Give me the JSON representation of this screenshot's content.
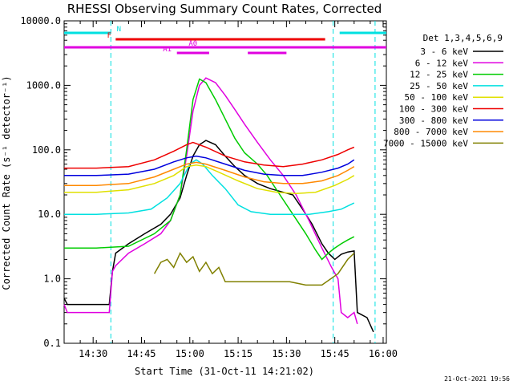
{
  "chart_data": {
    "type": "line",
    "title": "RHESSI Observing Summary Count Rates, Corrected",
    "xlabel": "Start Time (31-Oct-11 14:21:02)",
    "ylabel": "Corrected Count Rate (s⁻¹ detector⁻¹)",
    "x_ticks": [
      "14:30",
      "14:45",
      "15:00",
      "15:15",
      "15:30",
      "15:45",
      "16:00"
    ],
    "y_ticks": [
      "0.1",
      "1.0",
      "10.0",
      "100.0",
      "1000.0",
      "10000.0"
    ],
    "y_scale": "log",
    "ylim": [
      0.1,
      10000
    ],
    "xlim_minutes": [
      0,
      100
    ],
    "detector_label": "Det 1,3,4,5,6,9",
    "footer_date": "21-Oct-2021 19:56",
    "flags": {
      "N": {
        "label": "N",
        "color": "#00e0e0",
        "segments": [
          [
            0,
            14.5
          ],
          [
            85.5,
            100
          ]
        ]
      },
      "F": {
        "label": "F",
        "color": "#ee0000",
        "segments": [
          [
            16,
            81
          ]
        ]
      },
      "A0": {
        "label": "A0",
        "color": "#e000e0",
        "segments": [
          [
            0,
            100
          ]
        ]
      },
      "A1": {
        "label": "A1",
        "color": "#e000e0",
        "segments": [
          [
            35,
            45
          ],
          [
            57,
            69
          ]
        ]
      }
    },
    "vlines_minutes": [
      14.5,
      83.5,
      96.5
    ],
    "series": [
      {
        "name": "3 - 6 keV",
        "color": "#000000",
        "points": [
          [
            0,
            0.5
          ],
          [
            1,
            0.4
          ],
          [
            14,
            0.4
          ],
          [
            15,
            1.3
          ],
          [
            16,
            2.5
          ],
          [
            20,
            3.5
          ],
          [
            25,
            5
          ],
          [
            30,
            7
          ],
          [
            33,
            10
          ],
          [
            36,
            18
          ],
          [
            38,
            40
          ],
          [
            40,
            80
          ],
          [
            42,
            120
          ],
          [
            44,
            140
          ],
          [
            47,
            120
          ],
          [
            50,
            80
          ],
          [
            53,
            55
          ],
          [
            56,
            40
          ],
          [
            60,
            30
          ],
          [
            64,
            25
          ],
          [
            68,
            22
          ],
          [
            71,
            20
          ],
          [
            74,
            12
          ],
          [
            77,
            7
          ],
          [
            80,
            3.5
          ],
          [
            82,
            2.5
          ],
          [
            84,
            2
          ],
          [
            86,
            2.4
          ],
          [
            88,
            2.6
          ],
          [
            90,
            2.7
          ],
          [
            91,
            0.3
          ],
          [
            94,
            0.25
          ],
          [
            96,
            0.15
          ]
        ]
      },
      {
        "name": "6 - 12 keV",
        "color": "#e000e0",
        "points": [
          [
            0,
            0.4
          ],
          [
            1,
            0.3
          ],
          [
            14,
            0.3
          ],
          [
            15,
            1.3
          ],
          [
            16,
            1.6
          ],
          [
            20,
            2.5
          ],
          [
            25,
            3.5
          ],
          [
            30,
            5
          ],
          [
            33,
            8
          ],
          [
            36,
            20
          ],
          [
            38,
            80
          ],
          [
            40,
            400
          ],
          [
            42,
            1000
          ],
          [
            44,
            1300
          ],
          [
            47,
            1100
          ],
          [
            50,
            700
          ],
          [
            53,
            420
          ],
          [
            56,
            250
          ],
          [
            60,
            130
          ],
          [
            64,
            70
          ],
          [
            68,
            40
          ],
          [
            72,
            20
          ],
          [
            76,
            8
          ],
          [
            80,
            3
          ],
          [
            83,
            1.5
          ],
          [
            85,
            1.0
          ],
          [
            86,
            0.3
          ],
          [
            88,
            0.25
          ],
          [
            90,
            0.3
          ],
          [
            91,
            0.2
          ]
        ]
      },
      {
        "name": "12 - 25 keV",
        "color": "#00cc00",
        "points": [
          [
            0,
            3.0
          ],
          [
            10,
            3.0
          ],
          [
            20,
            3.2
          ],
          [
            28,
            5
          ],
          [
            33,
            8
          ],
          [
            36,
            20
          ],
          [
            38,
            100
          ],
          [
            40,
            600
          ],
          [
            42,
            1250
          ],
          [
            44,
            1100
          ],
          [
            47,
            600
          ],
          [
            50,
            300
          ],
          [
            53,
            150
          ],
          [
            56,
            90
          ],
          [
            60,
            60
          ],
          [
            63,
            40
          ],
          [
            67,
            20
          ],
          [
            71,
            10
          ],
          [
            75,
            5
          ],
          [
            78,
            2.8
          ],
          [
            80,
            2.0
          ],
          [
            82,
            2.5
          ],
          [
            84,
            3.0
          ],
          [
            86,
            3.5
          ],
          [
            88,
            4.0
          ],
          [
            90,
            4.5
          ]
        ]
      },
      {
        "name": "25 - 50 keV",
        "color": "#00e0e0",
        "points": [
          [
            0,
            10
          ],
          [
            10,
            10
          ],
          [
            20,
            10.5
          ],
          [
            27,
            12
          ],
          [
            32,
            18
          ],
          [
            36,
            30
          ],
          [
            39,
            60
          ],
          [
            41,
            70
          ],
          [
            43,
            60
          ],
          [
            46,
            40
          ],
          [
            50,
            25
          ],
          [
            54,
            14
          ],
          [
            58,
            11
          ],
          [
            64,
            10
          ],
          [
            70,
            10
          ],
          [
            76,
            10
          ],
          [
            82,
            11
          ],
          [
            86,
            12
          ],
          [
            90,
            15
          ]
        ]
      },
      {
        "name": "50 - 100 keV",
        "color": "#e0e000",
        "points": [
          [
            0,
            22
          ],
          [
            10,
            22
          ],
          [
            20,
            24
          ],
          [
            28,
            30
          ],
          [
            34,
            40
          ],
          [
            38,
            55
          ],
          [
            41,
            58
          ],
          [
            44,
            55
          ],
          [
            48,
            45
          ],
          [
            54,
            33
          ],
          [
            60,
            25
          ],
          [
            66,
            22
          ],
          [
            72,
            21
          ],
          [
            78,
            22
          ],
          [
            84,
            28
          ],
          [
            88,
            35
          ],
          [
            90,
            40
          ]
        ]
      },
      {
        "name": "100 - 300 keV",
        "color": "#ee0000",
        "points": [
          [
            0,
            52
          ],
          [
            10,
            52
          ],
          [
            20,
            55
          ],
          [
            28,
            70
          ],
          [
            34,
            95
          ],
          [
            38,
            120
          ],
          [
            40,
            130
          ],
          [
            44,
            110
          ],
          [
            50,
            80
          ],
          [
            56,
            65
          ],
          [
            62,
            58
          ],
          [
            68,
            55
          ],
          [
            74,
            60
          ],
          [
            80,
            70
          ],
          [
            85,
            85
          ],
          [
            88,
            100
          ],
          [
            90,
            110
          ]
        ]
      },
      {
        "name": "300 - 800 keV",
        "color": "#0000dd",
        "points": [
          [
            0,
            40
          ],
          [
            10,
            40
          ],
          [
            20,
            42
          ],
          [
            28,
            50
          ],
          [
            34,
            65
          ],
          [
            38,
            75
          ],
          [
            41,
            80
          ],
          [
            44,
            75
          ],
          [
            50,
            60
          ],
          [
            56,
            48
          ],
          [
            62,
            42
          ],
          [
            68,
            40
          ],
          [
            74,
            40
          ],
          [
            80,
            45
          ],
          [
            85,
            52
          ],
          [
            88,
            60
          ],
          [
            90,
            70
          ]
        ]
      },
      {
        "name": "800 - 7000 keV",
        "color": "#ff8800",
        "points": [
          [
            0,
            28
          ],
          [
            10,
            28
          ],
          [
            20,
            30
          ],
          [
            28,
            38
          ],
          [
            34,
            50
          ],
          [
            38,
            60
          ],
          [
            41,
            64
          ],
          [
            44,
            60
          ],
          [
            50,
            48
          ],
          [
            56,
            38
          ],
          [
            62,
            32
          ],
          [
            68,
            30
          ],
          [
            74,
            30
          ],
          [
            80,
            33
          ],
          [
            85,
            40
          ],
          [
            88,
            48
          ],
          [
            90,
            55
          ]
        ]
      },
      {
        "name": "7000 - 15000 keV",
        "color": "#808000",
        "points": [
          [
            28,
            1.2
          ],
          [
            30,
            1.8
          ],
          [
            32,
            2.0
          ],
          [
            34,
            1.5
          ],
          [
            36,
            2.5
          ],
          [
            38,
            1.8
          ],
          [
            40,
            2.2
          ],
          [
            42,
            1.3
          ],
          [
            44,
            1.8
          ],
          [
            46,
            1.2
          ],
          [
            48,
            1.5
          ],
          [
            50,
            0.9
          ],
          [
            55,
            0.9
          ],
          [
            60,
            0.9
          ],
          [
            65,
            0.9
          ],
          [
            70,
            0.9
          ],
          [
            75,
            0.8
          ],
          [
            80,
            0.8
          ],
          [
            85,
            1.2
          ],
          [
            88,
            2.0
          ],
          [
            90,
            2.5
          ]
        ]
      }
    ]
  }
}
